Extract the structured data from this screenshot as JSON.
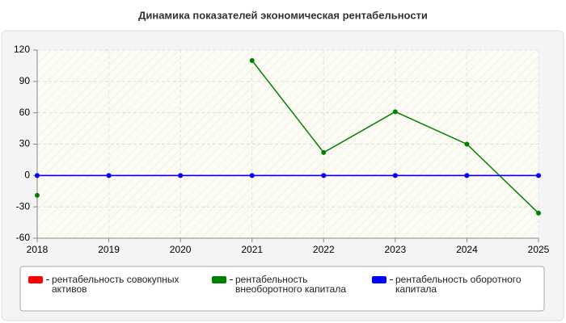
{
  "chart_data": {
    "type": "line",
    "title": "Динамика показателей экономическая рентабельности",
    "categories": [
      "2018",
      "2019",
      "2020",
      "2021",
      "2022",
      "2023",
      "2024",
      "2025"
    ],
    "series": [
      {
        "name": "рентабельность совокупных активов",
        "color": "#ff0000",
        "values": [
          0,
          0,
          0,
          0,
          0,
          0,
          0,
          0
        ]
      },
      {
        "name": "рентабельность внеоборотного капитала",
        "color": "#008000",
        "values": [
          -19,
          null,
          null,
          110,
          22,
          61,
          30,
          -36
        ]
      },
      {
        "name": "рентабельность оборотного капитала",
        "color": "#0000ff",
        "values": [
          0,
          0,
          0,
          0,
          0,
          0,
          0,
          0
        ]
      }
    ],
    "ylim": [
      -60,
      120
    ],
    "yticks": [
      -60,
      -30,
      0,
      30,
      60,
      90,
      120
    ],
    "grid": true,
    "legend": "bottom"
  }
}
